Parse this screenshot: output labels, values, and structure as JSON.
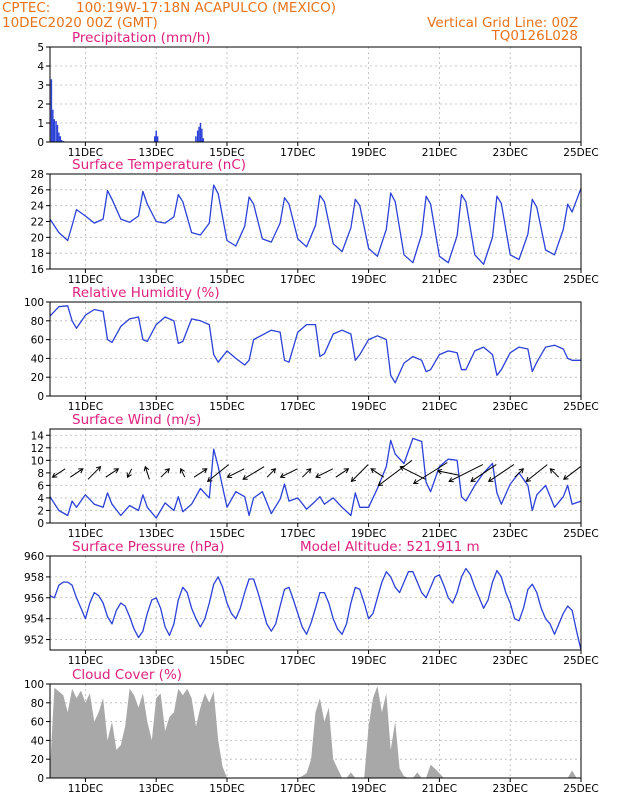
{
  "header": {
    "source": "CPTEC:",
    "location": "100:19W-17:18N   ACAPULCO (MEXICO)",
    "run": "10DEC2020 00Z (GMT)",
    "grid_note": "Vertical Grid Line: 00Z",
    "code": "TQ0126L028"
  },
  "colors": {
    "header": "#e8731c",
    "panel_title": "#e0207f",
    "line": "#2b41d8",
    "cloud_fill": "#a8a8a8",
    "grid": "#b8b8b8"
  },
  "chart_data": [
    {
      "id": "precipitation",
      "type": "bar",
      "title": "Precipitation (mm/h)",
      "ylim": [
        0,
        5
      ],
      "yticks": [
        0,
        1,
        2,
        3,
        4,
        5
      ],
      "xlim": [
        10.0,
        25.0
      ],
      "xticks": [
        11,
        13,
        15,
        17,
        19,
        21,
        23,
        25
      ],
      "xticklabels": [
        "11DEC",
        "13DEC",
        "15DEC",
        "17DEC",
        "19DEC",
        "21DEC",
        "23DEC",
        "25DEC"
      ],
      "grid": true,
      "x": [
        10.04,
        10.08,
        10.12,
        10.17,
        10.21,
        10.25,
        10.29,
        10.33,
        10.38,
        12.96,
        13.0,
        13.04,
        14.12,
        14.17,
        14.21,
        14.25,
        14.29,
        14.33
      ],
      "values": [
        3.3,
        1.7,
        1.2,
        1.1,
        0.9,
        0.5,
        0.3,
        0.1,
        0.05,
        0.3,
        0.6,
        0.3,
        0.3,
        0.6,
        0.8,
        1.0,
        0.7,
        0.2
      ]
    },
    {
      "id": "temperature",
      "type": "line",
      "title": "Surface Temperature (nC)",
      "ylim": [
        16,
        28
      ],
      "yticks": [
        16,
        18,
        20,
        22,
        24,
        26,
        28
      ],
      "xlim": [
        10.0,
        25.0
      ],
      "xticks": [
        11,
        13,
        15,
        17,
        19,
        21,
        23,
        25
      ],
      "xticklabels": [
        "11DEC",
        "13DEC",
        "15DEC",
        "17DEC",
        "19DEC",
        "21DEC",
        "23DEC",
        "25DEC"
      ],
      "grid": true,
      "x": [
        10.0,
        10.25,
        10.5,
        10.625,
        10.75,
        11.0,
        11.25,
        11.5,
        11.625,
        11.75,
        12.0,
        12.25,
        12.5,
        12.625,
        12.75,
        13.0,
        13.25,
        13.5,
        13.625,
        13.75,
        14.0,
        14.25,
        14.5,
        14.625,
        14.75,
        15.0,
        15.25,
        15.5,
        15.625,
        15.75,
        16.0,
        16.25,
        16.5,
        16.625,
        16.75,
        17.0,
        17.25,
        17.5,
        17.625,
        17.75,
        18.0,
        18.25,
        18.5,
        18.625,
        18.75,
        19.0,
        19.25,
        19.5,
        19.625,
        19.75,
        20.0,
        20.25,
        20.5,
        20.625,
        20.75,
        21.0,
        21.25,
        21.5,
        21.625,
        21.75,
        22.0,
        22.25,
        22.5,
        22.625,
        22.75,
        23.0,
        23.25,
        23.5,
        23.625,
        23.75,
        24.0,
        24.25,
        24.5,
        24.625,
        24.75,
        25.0
      ],
      "values": [
        22.3,
        20.6,
        19.6,
        21.5,
        23.5,
        22.7,
        21.8,
        22.3,
        25.9,
        24.8,
        22.3,
        21.9,
        22.7,
        25.8,
        24.2,
        22.0,
        21.8,
        22.6,
        25.4,
        24.5,
        20.6,
        20.3,
        21.8,
        26.6,
        25.5,
        19.6,
        18.9,
        21.4,
        25.1,
        24.2,
        19.8,
        19.4,
        21.8,
        25.0,
        24.2,
        19.8,
        18.8,
        21.5,
        25.3,
        24.5,
        19.2,
        18.2,
        21.2,
        24.8,
        24.0,
        18.6,
        17.6,
        21.0,
        25.6,
        24.5,
        17.8,
        16.8,
        20.4,
        25.2,
        24.2,
        17.6,
        16.8,
        20.2,
        25.4,
        24.5,
        17.8,
        16.6,
        20.0,
        25.2,
        24.3,
        17.8,
        17.2,
        20.4,
        24.8,
        23.8,
        18.4,
        17.8,
        21.0,
        24.2,
        23.2,
        26.2
      ]
    },
    {
      "id": "humidity",
      "type": "line",
      "title": "Relative Humidity (%)",
      "ylim": [
        0,
        100
      ],
      "yticks": [
        0,
        20,
        40,
        60,
        80,
        100
      ],
      "xlim": [
        10.0,
        25.0
      ],
      "xticks": [
        11,
        13,
        15,
        17,
        19,
        21,
        23,
        25
      ],
      "xticklabels": [
        "11DEC",
        "13DEC",
        "15DEC",
        "17DEC",
        "19DEC",
        "21DEC",
        "23DEC",
        "25DEC"
      ],
      "grid": true,
      "x": [
        10.0,
        10.25,
        10.5,
        10.625,
        10.75,
        11.0,
        11.25,
        11.5,
        11.625,
        11.75,
        12.0,
        12.25,
        12.5,
        12.625,
        12.75,
        13.0,
        13.25,
        13.5,
        13.625,
        13.75,
        14.0,
        14.25,
        14.5,
        14.625,
        14.75,
        15.0,
        15.25,
        15.5,
        15.625,
        15.75,
        16.0,
        16.25,
        16.5,
        16.625,
        16.75,
        17.0,
        17.25,
        17.5,
        17.625,
        17.75,
        18.0,
        18.25,
        18.5,
        18.625,
        18.75,
        19.0,
        19.25,
        19.5,
        19.625,
        19.75,
        20.0,
        20.25,
        20.5,
        20.625,
        20.75,
        21.0,
        21.25,
        21.5,
        21.625,
        21.75,
        22.0,
        22.25,
        22.5,
        22.625,
        22.75,
        23.0,
        23.25,
        23.5,
        23.625,
        23.75,
        24.0,
        24.25,
        24.5,
        24.625,
        24.75,
        25.0
      ],
      "values": [
        85,
        95,
        96,
        80,
        72,
        86,
        92,
        90,
        60,
        57,
        74,
        82,
        84,
        60,
        58,
        76,
        84,
        80,
        56,
        58,
        82,
        80,
        76,
        44,
        36,
        48,
        40,
        33,
        38,
        60,
        65,
        70,
        68,
        38,
        36,
        68,
        76,
        76,
        42,
        45,
        66,
        70,
        66,
        38,
        44,
        60,
        64,
        60,
        22,
        14,
        35,
        42,
        38,
        26,
        28,
        44,
        48,
        46,
        28,
        28,
        48,
        52,
        44,
        22,
        28,
        46,
        52,
        50,
        26,
        36,
        52,
        54,
        50,
        40,
        38,
        38
      ]
    },
    {
      "id": "wind",
      "type": "line",
      "title": "Surface Wind (m/s)",
      "ylim": [
        0,
        15
      ],
      "yticks": [
        0,
        2,
        4,
        6,
        8,
        10,
        12,
        14
      ],
      "xlim": [
        10.0,
        25.0
      ],
      "xticks": [
        11,
        13,
        15,
        17,
        19,
        21,
        23,
        25
      ],
      "xticklabels": [
        "11DEC",
        "13DEC",
        "15DEC",
        "17DEC",
        "19DEC",
        "21DEC",
        "23DEC",
        "25DEC"
      ],
      "grid": true,
      "x": [
        10.0,
        10.25,
        10.5,
        10.625,
        10.75,
        11.0,
        11.25,
        11.5,
        11.625,
        11.75,
        12.0,
        12.25,
        12.5,
        12.625,
        12.75,
        13.0,
        13.25,
        13.5,
        13.625,
        13.75,
        14.0,
        14.25,
        14.5,
        14.625,
        14.75,
        15.0,
        15.25,
        15.5,
        15.625,
        15.75,
        16.0,
        16.25,
        16.5,
        16.625,
        16.75,
        17.0,
        17.25,
        17.5,
        17.625,
        17.75,
        18.0,
        18.25,
        18.5,
        18.625,
        18.75,
        19.0,
        19.25,
        19.5,
        19.625,
        19.75,
        20.0,
        20.25,
        20.5,
        20.625,
        20.75,
        21.0,
        21.25,
        21.5,
        21.625,
        21.75,
        22.0,
        22.25,
        22.5,
        22.625,
        22.75,
        23.0,
        23.25,
        23.5,
        23.625,
        23.75,
        24.0,
        24.25,
        24.5,
        24.625,
        24.75,
        25.0
      ],
      "values": [
        4.2,
        2.0,
        1.2,
        3.5,
        2.5,
        4.5,
        3.0,
        2.5,
        4.8,
        3.0,
        1.2,
        2.8,
        2.0,
        4.5,
        2.5,
        0.8,
        3.2,
        2.0,
        4.2,
        1.8,
        3.0,
        5.5,
        4.0,
        11.8,
        9.0,
        2.5,
        5.0,
        4.2,
        1.2,
        4.0,
        5.0,
        1.5,
        3.8,
        6.2,
        3.5,
        4.0,
        2.2,
        3.5,
        4.2,
        3.0,
        4.0,
        2.5,
        1.2,
        4.8,
        2.5,
        2.5,
        5.5,
        9.0,
        13.2,
        11.0,
        9.5,
        13.5,
        13.0,
        6.5,
        5.0,
        9.0,
        10.2,
        10.0,
        4.2,
        3.5,
        6.0,
        8.0,
        9.5,
        4.8,
        3.0,
        6.2,
        8.0,
        6.0,
        2.0,
        4.5,
        6.0,
        2.5,
        4.2,
        6.0,
        3.0,
        3.5
      ],
      "wind_arrows": {
        "x": [
          10.25,
          10.75,
          11.25,
          11.75,
          12.25,
          12.75,
          13.25,
          13.75,
          14.25,
          14.75,
          15.25,
          15.75,
          16.25,
          16.75,
          17.25,
          17.75,
          18.25,
          18.75,
          19.25,
          19.75,
          20.25,
          20.75,
          21.25,
          21.75,
          22.25,
          22.75,
          23.25,
          23.75,
          24.25,
          24.75
        ],
        "u": [
          -3,
          3,
          3,
          3,
          -1,
          -1,
          2,
          -1,
          3,
          -5,
          -4,
          -5,
          2,
          -4,
          2,
          -4,
          3,
          -4,
          -3,
          -8,
          -6,
          -8,
          -5,
          -8,
          -6,
          -6,
          2,
          -5,
          -2,
          -4
        ],
        "v": [
          -2,
          2,
          3,
          2,
          -2,
          3,
          2,
          2,
          2,
          -4,
          -2,
          -3,
          2,
          -2,
          2,
          -2,
          2,
          -4,
          2,
          -6,
          3,
          -5,
          1,
          -4,
          -4,
          -4,
          2,
          -4,
          2,
          -3
        ]
      }
    },
    {
      "id": "pressure",
      "type": "line",
      "title": "Surface Pressure (hPa)",
      "annotation": "Model Altitude: 521.911 m",
      "ylim": [
        951,
        960
      ],
      "yticks": [
        952,
        954,
        956,
        958,
        960
      ],
      "xlim": [
        10.0,
        25.0
      ],
      "xticks": [
        11,
        13,
        15,
        17,
        19,
        21,
        23,
        25
      ],
      "xticklabels": [
        "11DEC",
        "13DEC",
        "15DEC",
        "17DEC",
        "19DEC",
        "21DEC",
        "23DEC",
        "25DEC"
      ],
      "grid": true,
      "x": [
        10.0,
        10.125,
        10.25,
        10.375,
        10.5,
        10.625,
        10.75,
        10.875,
        11.0,
        11.125,
        11.25,
        11.375,
        11.5,
        11.625,
        11.75,
        11.875,
        12.0,
        12.125,
        12.25,
        12.375,
        12.5,
        12.625,
        12.75,
        12.875,
        13.0,
        13.125,
        13.25,
        13.375,
        13.5,
        13.625,
        13.75,
        13.875,
        14.0,
        14.125,
        14.25,
        14.375,
        14.5,
        14.625,
        14.75,
        14.875,
        15.0,
        15.125,
        15.25,
        15.375,
        15.5,
        15.625,
        15.75,
        15.875,
        16.0,
        16.125,
        16.25,
        16.375,
        16.5,
        16.625,
        16.75,
        16.875,
        17.0,
        17.125,
        17.25,
        17.375,
        17.5,
        17.625,
        17.75,
        17.875,
        18.0,
        18.125,
        18.25,
        18.375,
        18.5,
        18.625,
        18.75,
        18.875,
        19.0,
        19.125,
        19.25,
        19.375,
        19.5,
        19.625,
        19.75,
        19.875,
        20.0,
        20.125,
        20.25,
        20.375,
        20.5,
        20.625,
        20.75,
        20.875,
        21.0,
        21.125,
        21.25,
        21.375,
        21.5,
        21.625,
        21.75,
        21.875,
        22.0,
        22.125,
        22.25,
        22.375,
        22.5,
        22.625,
        22.75,
        22.875,
        23.0,
        23.125,
        23.25,
        23.375,
        23.5,
        23.625,
        23.75,
        23.875,
        24.0,
        24.125,
        24.25,
        24.375,
        24.5,
        24.625,
        24.75,
        24.875,
        25.0
      ],
      "values": [
        956.2,
        956.0,
        957.2,
        957.5,
        957.5,
        957.2,
        956.0,
        955.0,
        954.0,
        955.5,
        956.5,
        956.2,
        955.5,
        954.2,
        953.5,
        954.8,
        955.5,
        955.2,
        954.2,
        953.0,
        952.2,
        952.8,
        954.5,
        955.8,
        956.0,
        955.0,
        953.2,
        952.4,
        953.5,
        955.8,
        957.0,
        956.5,
        955.0,
        954.0,
        953.2,
        954.0,
        955.5,
        957.3,
        958.0,
        957.0,
        955.5,
        954.5,
        954.0,
        955.0,
        956.5,
        957.8,
        957.8,
        956.5,
        955.0,
        953.5,
        952.8,
        953.5,
        955.2,
        956.8,
        957.0,
        955.8,
        954.5,
        953.2,
        952.5,
        953.6,
        955.0,
        956.5,
        956.5,
        955.5,
        954.0,
        953.0,
        952.5,
        953.5,
        955.5,
        957.0,
        956.8,
        955.5,
        954.0,
        954.5,
        956.0,
        957.5,
        958.5,
        958.0,
        957.0,
        956.5,
        957.5,
        958.5,
        958.5,
        957.5,
        956.5,
        956.0,
        957.0,
        958.0,
        958.2,
        957.2,
        956.0,
        955.5,
        956.5,
        958.0,
        958.8,
        958.2,
        957.0,
        956.0,
        955.0,
        955.8,
        957.5,
        958.6,
        958.0,
        956.5,
        955.5,
        954.0,
        953.8,
        955.0,
        956.8,
        957.3,
        956.5,
        955.0,
        954.0,
        953.5,
        952.5,
        953.5,
        954.5,
        955.2,
        954.8,
        952.8,
        951.0
      ]
    },
    {
      "id": "cloud_cover",
      "type": "area",
      "title": "Cloud Cover (%)",
      "ylim": [
        0,
        100
      ],
      "yticks": [
        0,
        20,
        40,
        60,
        80,
        100
      ],
      "xlim": [
        10.0,
        25.0
      ],
      "xticks": [
        11,
        13,
        15,
        17,
        19,
        21,
        23,
        25
      ],
      "xticklabels": [
        "11DEC",
        "13DEC",
        "15DEC",
        "17DEC",
        "19DEC",
        "21DEC",
        "23DEC",
        "25DEC"
      ],
      "grid": true,
      "x": [
        10.0,
        10.125,
        10.25,
        10.375,
        10.5,
        10.625,
        10.75,
        10.875,
        11.0,
        11.125,
        11.25,
        11.375,
        11.5,
        11.625,
        11.75,
        11.875,
        12.0,
        12.125,
        12.25,
        12.375,
        12.5,
        12.625,
        12.75,
        12.875,
        13.0,
        13.125,
        13.25,
        13.375,
        13.5,
        13.625,
        13.75,
        13.875,
        14.0,
        14.125,
        14.25,
        14.375,
        14.5,
        14.625,
        14.75,
        14.875,
        15.0,
        15.125,
        15.25,
        15.375,
        15.5,
        15.625,
        15.75,
        15.875,
        16.0,
        16.125,
        16.25,
        16.375,
        16.5,
        16.625,
        16.75,
        16.875,
        17.0,
        17.125,
        17.25,
        17.375,
        17.5,
        17.625,
        17.75,
        17.875,
        18.0,
        18.125,
        18.25,
        18.375,
        18.5,
        18.625,
        18.75,
        18.875,
        19.0,
        19.125,
        19.25,
        19.375,
        19.5,
        19.625,
        19.75,
        19.875,
        20.0,
        20.125,
        20.25,
        20.375,
        20.5,
        20.625,
        20.75,
        20.875,
        21.0,
        21.125,
        21.25,
        21.375,
        21.5,
        21.625,
        21.75,
        21.875,
        22.0,
        22.125,
        22.25,
        22.375,
        22.5,
        22.625,
        22.75,
        22.875,
        23.0,
        23.125,
        23.25,
        23.375,
        23.5,
        23.625,
        23.75,
        23.875,
        24.0,
        24.125,
        24.25,
        24.375,
        24.5,
        24.625,
        24.75,
        24.875,
        25.0
      ],
      "values": [
        10,
        96,
        92,
        88,
        70,
        95,
        85,
        93,
        80,
        90,
        60,
        70,
        85,
        40,
        60,
        30,
        35,
        55,
        95,
        88,
        75,
        90,
        60,
        40,
        85,
        90,
        50,
        65,
        70,
        95,
        88,
        95,
        85,
        55,
        75,
        90,
        80,
        92,
        40,
        12,
        0,
        0,
        0,
        0,
        0,
        0,
        0,
        0,
        0,
        0,
        0,
        0,
        0,
        0,
        0,
        0,
        0,
        2,
        5,
        20,
        70,
        85,
        60,
        75,
        20,
        10,
        0,
        0,
        6,
        0,
        0,
        0,
        55,
        85,
        98,
        70,
        90,
        30,
        60,
        10,
        2,
        0,
        0,
        6,
        0,
        0,
        14,
        10,
        5,
        0,
        0,
        0,
        0,
        0,
        0,
        0,
        0,
        0,
        0,
        0,
        0,
        0,
        0,
        0,
        0,
        0,
        0,
        0,
        0,
        0,
        0,
        0,
        0,
        0,
        0,
        0,
        0,
        0,
        8,
        0,
        0
      ]
    }
  ]
}
